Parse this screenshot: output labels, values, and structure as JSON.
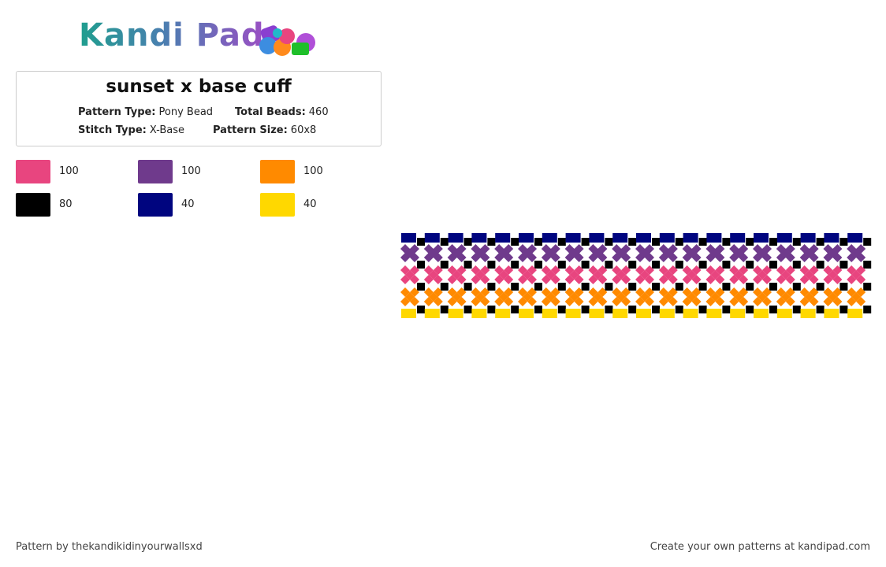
{
  "logo": "Kandi Pad",
  "title": "sunset x base cuff",
  "details": [
    {
      "label": "Pattern Type:",
      "value": "Pony Bead"
    },
    {
      "label": "Total Beads:",
      "value": "460"
    },
    {
      "label": "Stitch Type:",
      "value": "X-Base"
    },
    {
      "label": "Pattern Size:",
      "value": "60x8"
    }
  ],
  "palette": [
    {
      "color": "#e8457f",
      "count": 100
    },
    {
      "color": "#6f3a8c",
      "count": 100
    },
    {
      "color": "#ff8a00",
      "count": 100
    },
    {
      "color": "#000000",
      "count": 80
    },
    {
      "color": "#00057f",
      "count": 40
    },
    {
      "color": "#ffd800",
      "count": 40
    }
  ],
  "footer": {
    "left": "Pattern by thekandikidinyourwallsxd",
    "right": "Create your own patterns at kandipad.com"
  }
}
